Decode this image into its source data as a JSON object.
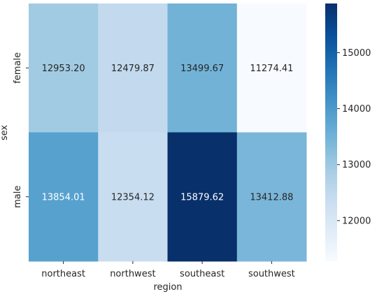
{
  "chart_data": {
    "type": "heatmap",
    "title": "",
    "xlabel": "region",
    "ylabel": "sex",
    "x": [
      "northeast",
      "northwest",
      "southeast",
      "southwest"
    ],
    "y": [
      "female",
      "male"
    ],
    "values": [
      [
        12953.2,
        12479.87,
        13499.67,
        11274.41
      ],
      [
        13854.01,
        12354.12,
        15879.62,
        13412.88
      ]
    ],
    "colormap": "Blues",
    "vmin": 11274.41,
    "vmax": 15879.62,
    "colorbar_ticks": [
      12000,
      13000,
      14000,
      15000
    ],
    "colorbar_tick_labels": [
      "12000",
      "13000",
      "14000",
      "15000"
    ],
    "value_format": "2 decimals",
    "grid": false,
    "legend": "colorbar-right"
  }
}
